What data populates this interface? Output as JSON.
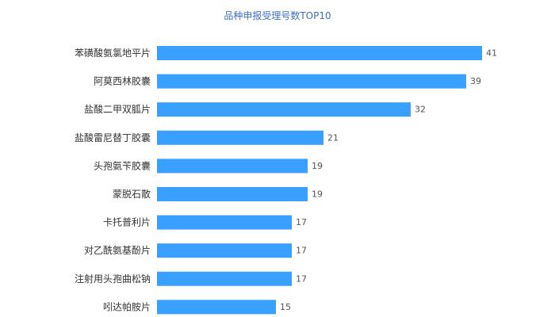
{
  "chart_data": {
    "type": "bar",
    "orientation": "horizontal",
    "title": "品种申报受理号数TOP10",
    "categories": [
      "苯磺酸氨氯地平片",
      "阿莫西林胶囊",
      "盐酸二甲双胍片",
      "盐酸雷尼替丁胶囊",
      "头孢氨苄胶囊",
      "蒙脱石散",
      "卡托普利片",
      "对乙酰氨基酚片",
      "注射用头孢曲松钠",
      "吲达帕胺片"
    ],
    "values": [
      41,
      39,
      32,
      21,
      19,
      19,
      17,
      17,
      17,
      15
    ],
    "xlim": [
      0,
      41
    ],
    "grid": false,
    "legend": "none",
    "colors": {
      "bar": "#3aa0ff",
      "title": "#3c6fc6"
    }
  }
}
